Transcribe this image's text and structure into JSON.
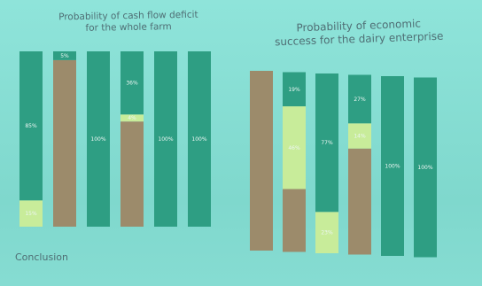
{
  "slide": {
    "conclusion": "Conclusion"
  },
  "colors": {
    "green": "#2e9e83",
    "red": "#9c8b6b",
    "yellow": "#c8ec9a",
    "background": "#86ddd2"
  },
  "chart_data": [
    {
      "type": "bar",
      "stacked": true,
      "title": "Probability of cash flow deficit\nfor the whole farm",
      "series_order": [
        "bottom",
        "middle",
        "top"
      ],
      "bars": [
        {
          "bottom": {
            "color": "yellow",
            "value": 15,
            "label": "15%"
          },
          "middle": null,
          "top": {
            "color": "green",
            "value": 85,
            "label": "85%"
          }
        },
        {
          "bottom": {
            "color": "red",
            "value": 95,
            "label": ""
          },
          "middle": null,
          "top": {
            "color": "green",
            "value": 5,
            "label": "5%"
          }
        },
        {
          "bottom": {
            "color": "green",
            "value": 100,
            "label": "100%"
          },
          "middle": null,
          "top": null
        },
        {
          "bottom": {
            "color": "red",
            "value": 60,
            "label": ""
          },
          "middle": {
            "color": "yellow",
            "value": 4,
            "label": "4%"
          },
          "top": {
            "color": "green",
            "value": 36,
            "label": "36%"
          }
        },
        {
          "bottom": {
            "color": "green",
            "value": 100,
            "label": "100%"
          },
          "middle": null,
          "top": null
        },
        {
          "bottom": {
            "color": "green",
            "value": 100,
            "label": "100%"
          },
          "middle": null,
          "top": null
        }
      ],
      "ylim": [
        0,
        100
      ]
    },
    {
      "type": "bar",
      "stacked": true,
      "title": "Probability of economic\nsuccess for the dairy enterprise",
      "bars": [
        {
          "bottom": {
            "color": "red",
            "value": 100,
            "label": ""
          },
          "middle": null,
          "top": null
        },
        {
          "bottom": {
            "color": "red",
            "value": 35,
            "label": ""
          },
          "middle": {
            "color": "yellow",
            "value": 46,
            "label": "46%"
          },
          "top": {
            "color": "green",
            "value": 19,
            "label": "19%"
          }
        },
        {
          "bottom": {
            "color": "yellow",
            "value": 23,
            "label": "23%"
          },
          "middle": null,
          "top": {
            "color": "green",
            "value": 77,
            "label": "77%"
          }
        },
        {
          "bottom": {
            "color": "red",
            "value": 59,
            "label": ""
          },
          "middle": {
            "color": "yellow",
            "value": 14,
            "label": "14%"
          },
          "top": {
            "color": "green",
            "value": 27,
            "label": "27%"
          }
        },
        {
          "bottom": {
            "color": "green",
            "value": 100,
            "label": "100%"
          },
          "middle": null,
          "top": null
        },
        {
          "bottom": {
            "color": "green",
            "value": 100,
            "label": "100%"
          },
          "middle": null,
          "top": null
        }
      ],
      "ylim": [
        0,
        100
      ]
    }
  ]
}
